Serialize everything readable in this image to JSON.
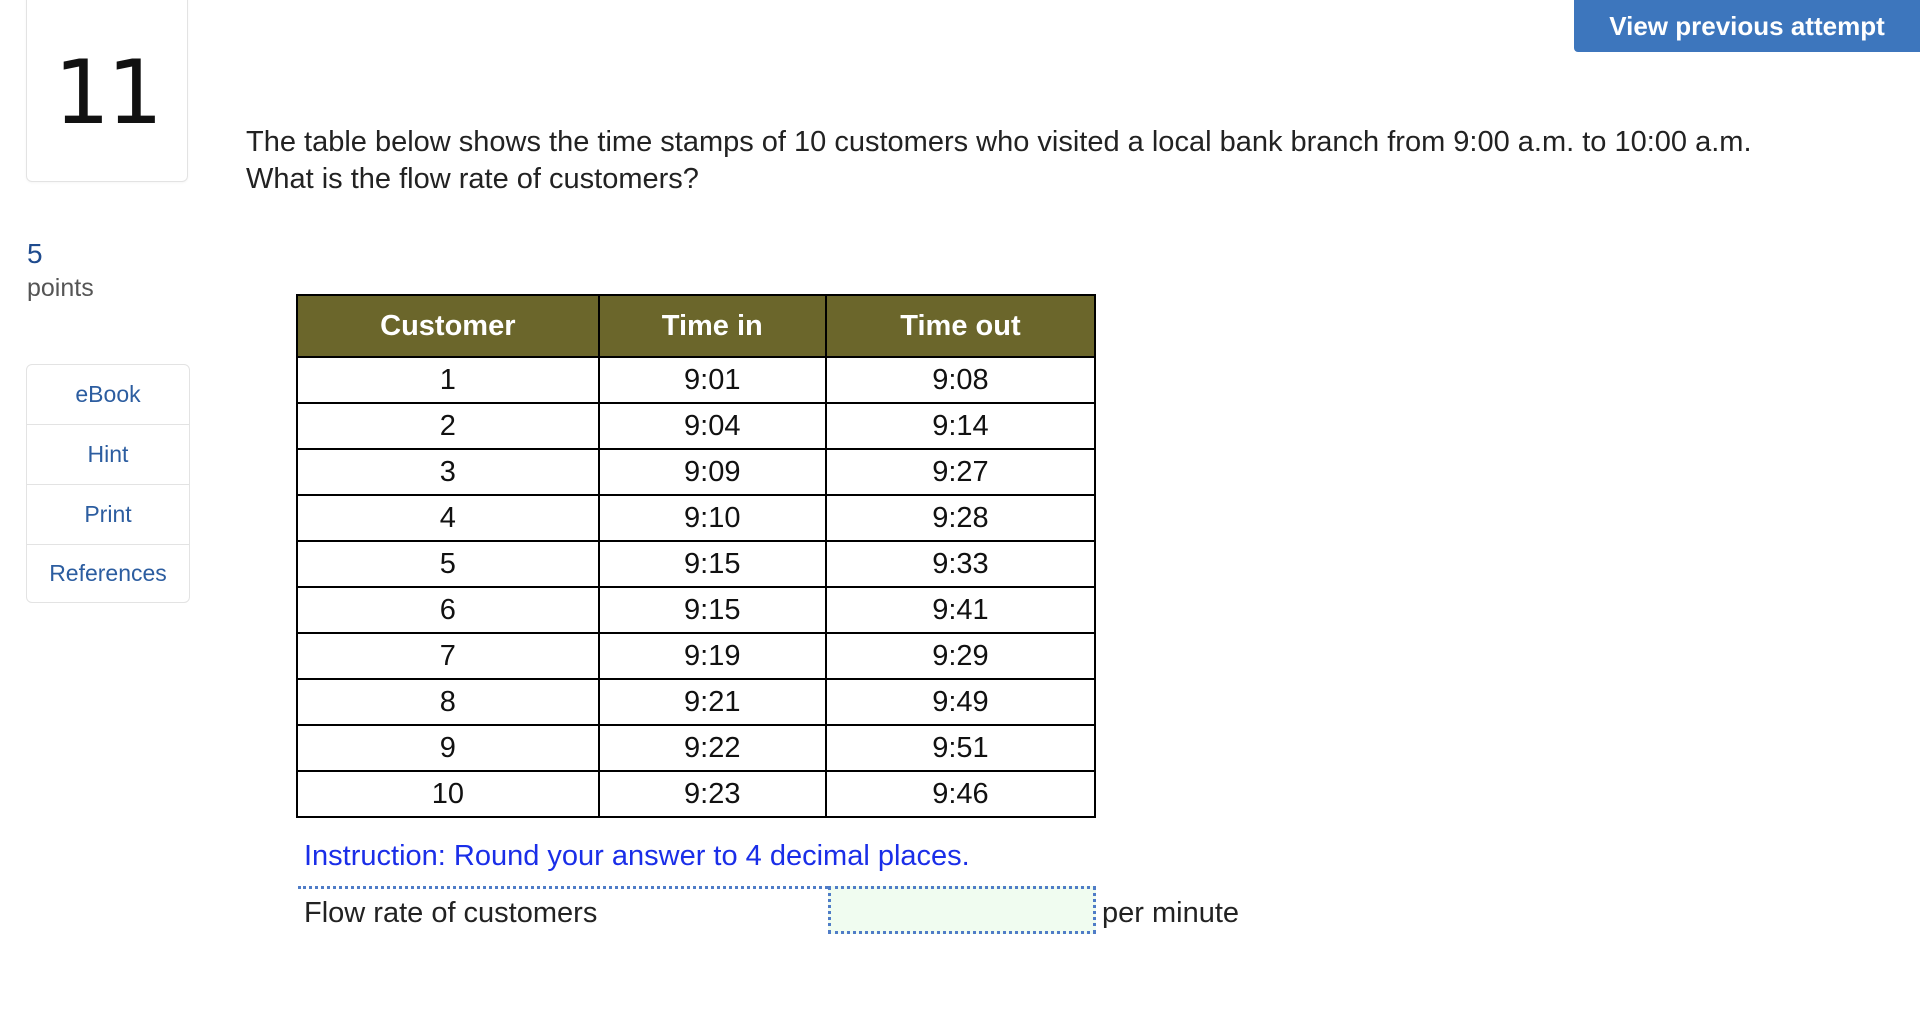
{
  "question_number": "11",
  "points": {
    "value": "5",
    "label": "points"
  },
  "sidebar": {
    "tools": [
      {
        "name": "sidebar-ebook",
        "label": "eBook"
      },
      {
        "name": "sidebar-hint",
        "label": "Hint"
      },
      {
        "name": "sidebar-print",
        "label": "Print"
      },
      {
        "name": "sidebar-references",
        "label": "References"
      }
    ]
  },
  "header": {
    "previous_attempt_label": "View previous attempt"
  },
  "question": {
    "line1": "The table below shows the time stamps of 10 customers who visited a local bank branch from 9:00 a.m. to 10:00 a.m.",
    "line2": "What is the flow rate of customers?"
  },
  "table": {
    "headers": [
      "Customer",
      "Time in",
      "Time out"
    ],
    "rows": [
      [
        "1",
        "9:01",
        "9:08"
      ],
      [
        "2",
        "9:04",
        "9:14"
      ],
      [
        "3",
        "9:09",
        "9:27"
      ],
      [
        "4",
        "9:10",
        "9:28"
      ],
      [
        "5",
        "9:15",
        "9:33"
      ],
      [
        "6",
        "9:15",
        "9:41"
      ],
      [
        "7",
        "9:19",
        "9:29"
      ],
      [
        "8",
        "9:21",
        "9:49"
      ],
      [
        "9",
        "9:22",
        "9:51"
      ],
      [
        "10",
        "9:23",
        "9:46"
      ]
    ]
  },
  "answer": {
    "instruction": "Instruction: Round your answer to 4 decimal places.",
    "label": "Flow rate of customers",
    "value": "",
    "unit": "per minute"
  },
  "colors": {
    "header_fill": "#6b662b",
    "button_fill": "#3d76bd",
    "instruction_text": "#1a2ee8",
    "input_fill": "#f0fcf0"
  }
}
